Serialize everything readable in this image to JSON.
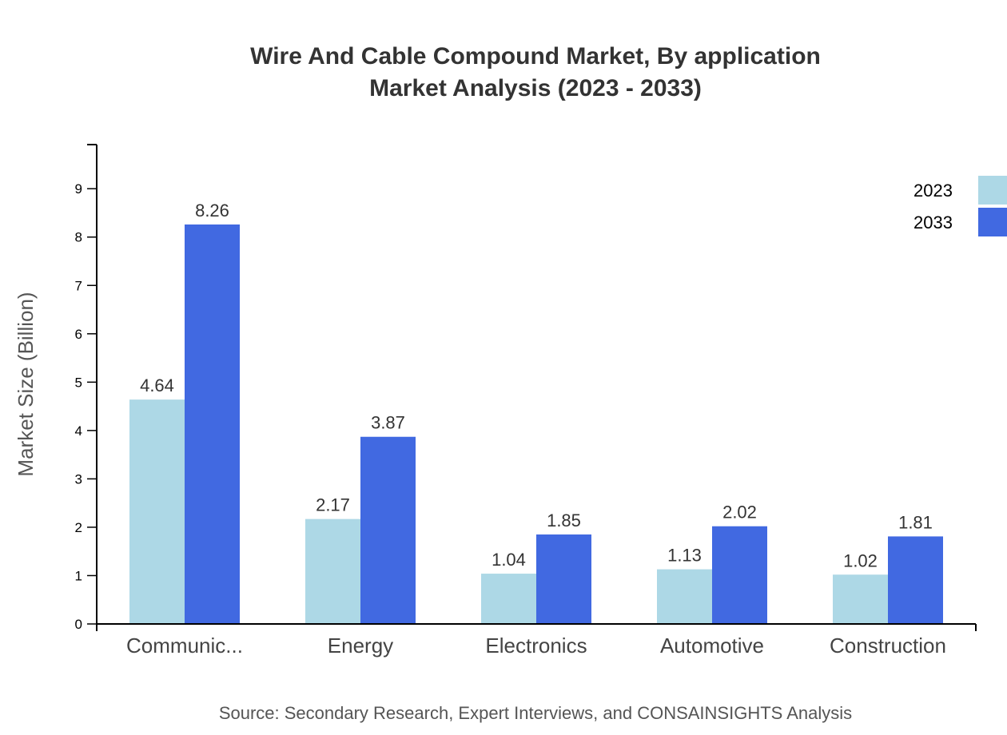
{
  "chart_data": {
    "type": "bar",
    "title_line1": "Wire And Cable Compound Market, By application",
    "title_line2": "Market Analysis (2023 - 2033)",
    "xlabel": "",
    "ylabel": "Market Size (Billion)",
    "ylim": [
      0,
      9.912
    ],
    "yticks": [
      0,
      1,
      2,
      3,
      4,
      5,
      6,
      7,
      8,
      9
    ],
    "categories": [
      "Communic...",
      "Energy",
      "Electronics",
      "Automotive",
      "Construction"
    ],
    "series": [
      {
        "name": "2023",
        "color": "#add8e6",
        "values": [
          4.64,
          2.17,
          1.04,
          1.13,
          1.02
        ]
      },
      {
        "name": "2033",
        "color": "#4169e1",
        "values": [
          8.26,
          3.87,
          1.85,
          2.02,
          1.81
        ]
      }
    ],
    "legend_position": "top-right",
    "grid": false,
    "source": "Source: Secondary Research, Expert Interviews, and CONSAINSIGHTS Analysis"
  }
}
